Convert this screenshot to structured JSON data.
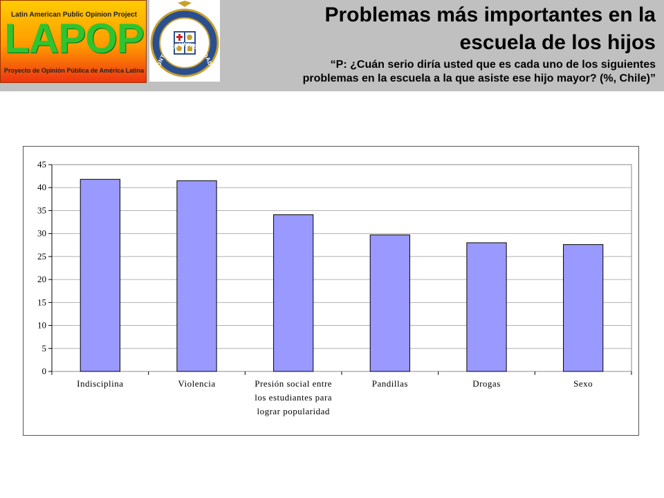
{
  "header": {
    "lapop_top": "Latin American Public Opinion Project",
    "lapop_word": "LAPOP",
    "lapop_bottom": "Proyecto de Opinión Pública de América Latina",
    "seal_text": "PONTIFICIA UNIVERSIDAD CATÓLICA DE CHILE",
    "title_line1": "Problemas más importantes en la",
    "title_line2": "escuela de los hijos",
    "subtitle_line1": "“P: ¿Cuán serio diría usted que es cada uno de los siguientes",
    "subtitle_line2": "problemas en la escuela a la que asiste ese hijo mayor? (%, Chile)”"
  },
  "colors": {
    "header_bg": "#c0c0c0",
    "bar_fill": "#9999ff",
    "bar_stroke": "#000000",
    "grid": "#b0b0b0"
  },
  "chart_data": {
    "type": "bar",
    "categories": [
      [
        "Indisciplina"
      ],
      [
        "Violencia"
      ],
      [
        "Presión social entre",
        "los estudiantes para",
        "lograr popularidad"
      ],
      [
        "Pandillas"
      ],
      [
        "Drogas"
      ],
      [
        "Sexo"
      ]
    ],
    "values": [
      41.8,
      41.5,
      34.1,
      29.7,
      28.0,
      27.6
    ],
    "yticks": [
      "0",
      "5",
      "10",
      "15",
      "20",
      "25",
      "30",
      "35",
      "40",
      "45"
    ],
    "ylim": [
      0,
      45
    ],
    "grid": true,
    "title": "",
    "xlabel": "",
    "ylabel": ""
  }
}
